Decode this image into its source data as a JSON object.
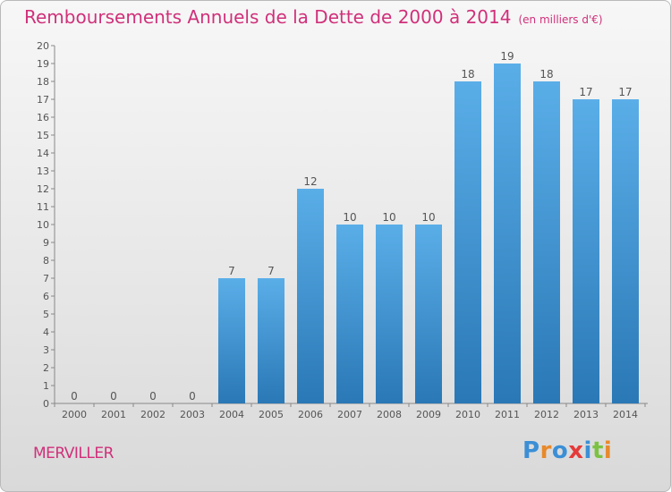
{
  "header": {
    "title": "Remboursements Annuels de la Dette de 2000 à 2014",
    "unit": "(en milliers d'€)"
  },
  "footer": {
    "town": "MERVILLER",
    "logo": "Proxiti"
  },
  "chart_data": {
    "type": "bar",
    "title": "Remboursements Annuels de la Dette de 2000 à 2014",
    "subtitle": "(en milliers d'€)",
    "xlabel": "",
    "ylabel": "",
    "categories": [
      "2000",
      "2001",
      "2002",
      "2003",
      "2004",
      "2005",
      "2006",
      "2007",
      "2008",
      "2009",
      "2010",
      "2011",
      "2012",
      "2013",
      "2014"
    ],
    "values": [
      0,
      0,
      0,
      0,
      7,
      7,
      12,
      10,
      10,
      10,
      18,
      19,
      18,
      17,
      17
    ],
    "ylim": [
      0,
      20
    ],
    "yticks": [
      0,
      1,
      2,
      3,
      4,
      5,
      6,
      7,
      8,
      9,
      10,
      11,
      12,
      13,
      14,
      15,
      16,
      17,
      18,
      19,
      20
    ],
    "grid": false,
    "colors": {
      "bar_top": "#5aaee8",
      "bar_bottom": "#2a78b6",
      "text": "#555555",
      "title": "#d0307a"
    }
  }
}
